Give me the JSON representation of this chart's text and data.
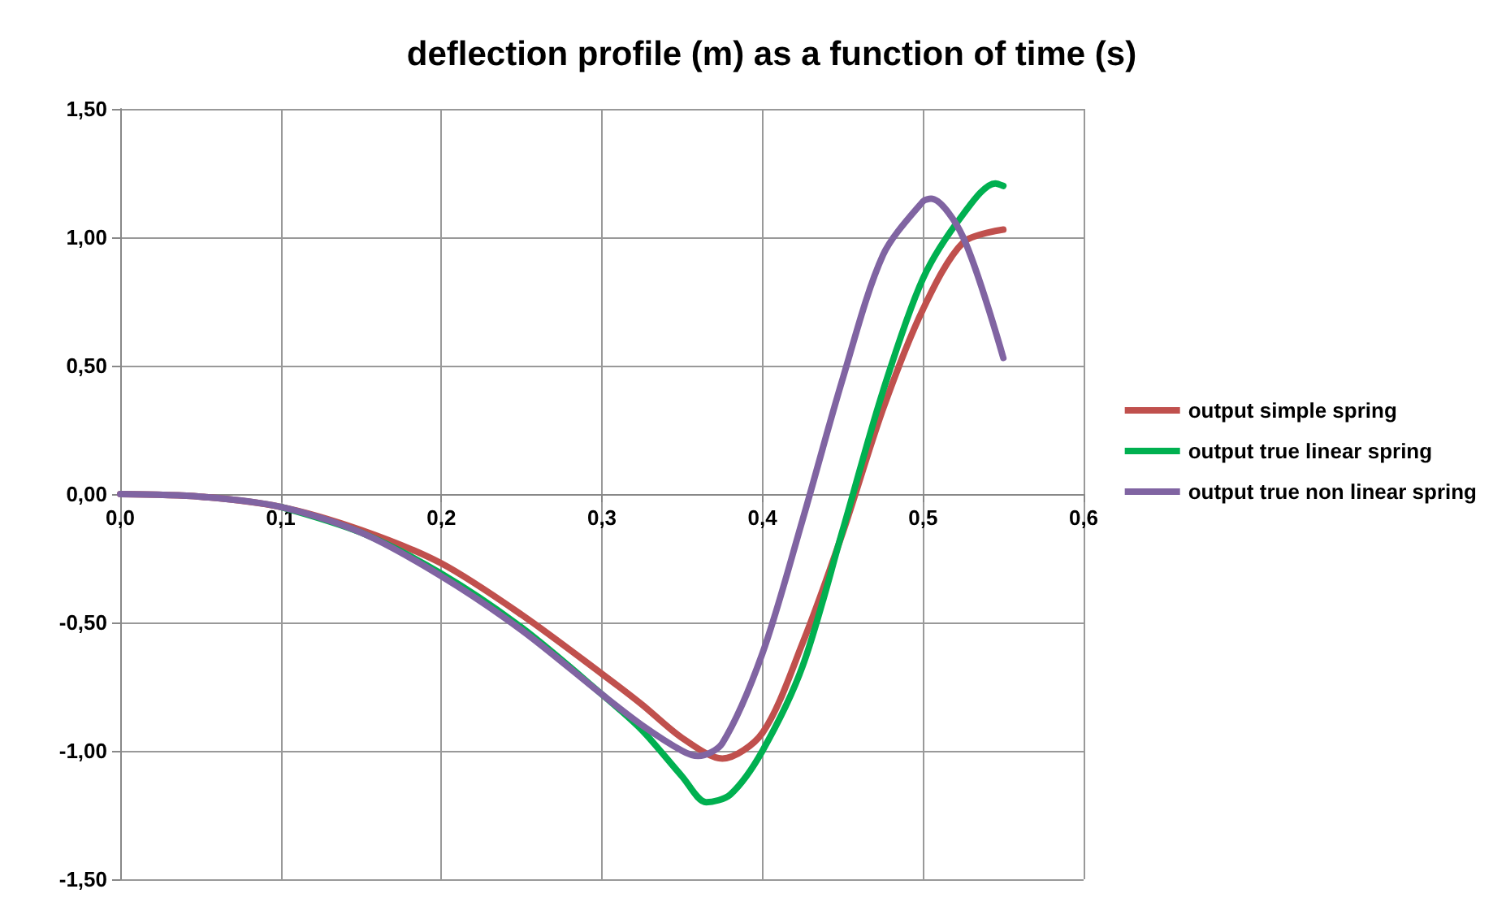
{
  "chart_data": {
    "type": "line",
    "title": "deflection profile (m) as a function of time (s)",
    "xlim": [
      0,
      0.6
    ],
    "xticks": [
      {
        "value": 0,
        "label": "0,0"
      },
      {
        "value": 0.1,
        "label": "0,1"
      },
      {
        "value": 0.2,
        "label": "0,2"
      },
      {
        "value": 0.3,
        "label": "0,3"
      },
      {
        "value": 0.4,
        "label": "0,4"
      },
      {
        "value": 0.5,
        "label": "0,5"
      },
      {
        "value": 0.6,
        "label": "0,6"
      }
    ],
    "ylim": [
      -1.5,
      1.5
    ],
    "yticks": [
      {
        "value": -1.5,
        "label": "-1,50"
      },
      {
        "value": -1,
        "label": "-1,00"
      },
      {
        "value": -0.5,
        "label": "-0,50"
      },
      {
        "value": 0,
        "label": "0,00"
      },
      {
        "value": 0.5,
        "label": "0,50"
      },
      {
        "value": 1,
        "label": "1,00"
      },
      {
        "value": 1.5,
        "label": "1,50"
      }
    ],
    "grid": true,
    "legend": "right",
    "marker": "none",
    "line_style": "solid",
    "series": [
      {
        "name": "output simple spring",
        "color": "#c0504d",
        "x": [
          0,
          0.05,
          0.1,
          0.15,
          0.2,
          0.25,
          0.3,
          0.325,
          0.35,
          0.375,
          0.4,
          0.425,
          0.45,
          0.475,
          0.5,
          0.525,
          0.55
        ],
        "values": [
          0,
          -0.01,
          -0.05,
          -0.14,
          -0.27,
          -0.47,
          -0.7,
          -0.82,
          -0.95,
          -1.03,
          -0.93,
          -0.58,
          -0.15,
          0.33,
          0.72,
          0.98,
          1.03
        ]
      },
      {
        "name": "output true linear spring",
        "color": "#00b050",
        "x": [
          0.1,
          0.15,
          0.2,
          0.25,
          0.3,
          0.325,
          0.35,
          0.365,
          0.38,
          0.4,
          0.425,
          0.45,
          0.475,
          0.5,
          0.525,
          0.545,
          0.55
        ],
        "values": [
          -0.05,
          -0.15,
          -0.31,
          -0.52,
          -0.78,
          -0.92,
          -1.1,
          -1.2,
          -1.17,
          -1.0,
          -0.67,
          -0.14,
          0.4,
          0.84,
          1.09,
          1.21,
          1.2
        ]
      },
      {
        "name": "output true non linear spring",
        "color": "#8064a2",
        "x": [
          0,
          0.05,
          0.1,
          0.15,
          0.2,
          0.25,
          0.3,
          0.325,
          0.35,
          0.36,
          0.375,
          0.4,
          0.425,
          0.45,
          0.475,
          0.5,
          0.505,
          0.525,
          0.55
        ],
        "values": [
          0,
          -0.01,
          -0.05,
          -0.15,
          -0.32,
          -0.53,
          -0.78,
          -0.9,
          -1.0,
          -1.02,
          -0.97,
          -0.62,
          -0.1,
          0.45,
          0.93,
          1.14,
          1.15,
          1.0,
          0.53
        ]
      }
    ]
  }
}
